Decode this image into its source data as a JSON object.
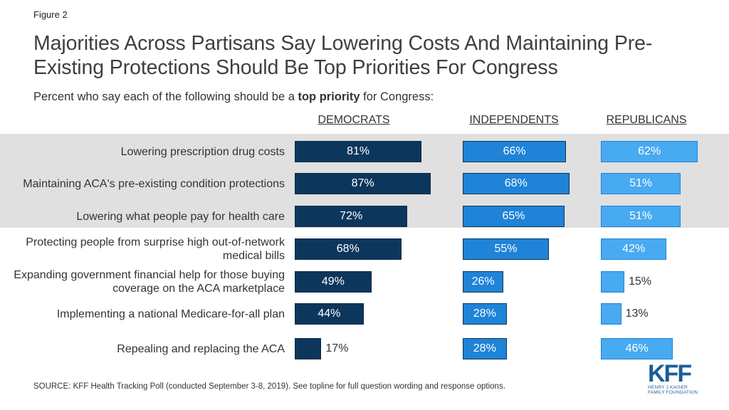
{
  "figure_label": "Figure 2",
  "title": "Majorities Across Partisans Say Lowering Costs And Maintaining Pre-Existing Protections Should Be Top Priorities For Congress",
  "subtitle": {
    "prefix": "Percent who say each of the following should be a ",
    "bold": "top priority",
    "suffix": " for Congress:"
  },
  "source": "SOURCE: KFF Health Tracking Poll (conducted September 3-8, 2019). See topline for full question wording and response options.",
  "logo": {
    "mark": "KFF",
    "line1": "HENRY J KAISER",
    "line2": "FAMILY FOUNDATION"
  },
  "colors": {
    "democrats": "#0d365c",
    "independents": "#1f83d8",
    "republicans": "#48aaf1",
    "highlight": "#e0e0e0"
  },
  "chart_data": {
    "type": "bar",
    "orientation": "horizontal",
    "categories": [
      "Lowering prescription drug costs",
      "Maintaining ACA's pre-existing condition protections",
      "Lowering what people pay for health care",
      "Protecting people from surprise high out-of-network medical bills",
      "Expanding government financial help for those buying coverage on the ACA marketplace",
      "Implementing a national Medicare-for-all plan",
      "Repealing and replacing the ACA"
    ],
    "series": [
      {
        "name": "DEMOCRATS",
        "values": [
          81,
          87,
          72,
          68,
          49,
          44,
          17
        ]
      },
      {
        "name": "INDEPENDENTS",
        "values": [
          66,
          68,
          65,
          55,
          26,
          28,
          28
        ]
      },
      {
        "name": "REPUBLICANS",
        "values": [
          62,
          51,
          51,
          42,
          15,
          13,
          46
        ]
      }
    ],
    "value_suffix": "%",
    "xlim": [
      0,
      100
    ],
    "highlighted_rows": [
      0,
      1,
      2
    ],
    "grid": false,
    "legend": "none"
  }
}
